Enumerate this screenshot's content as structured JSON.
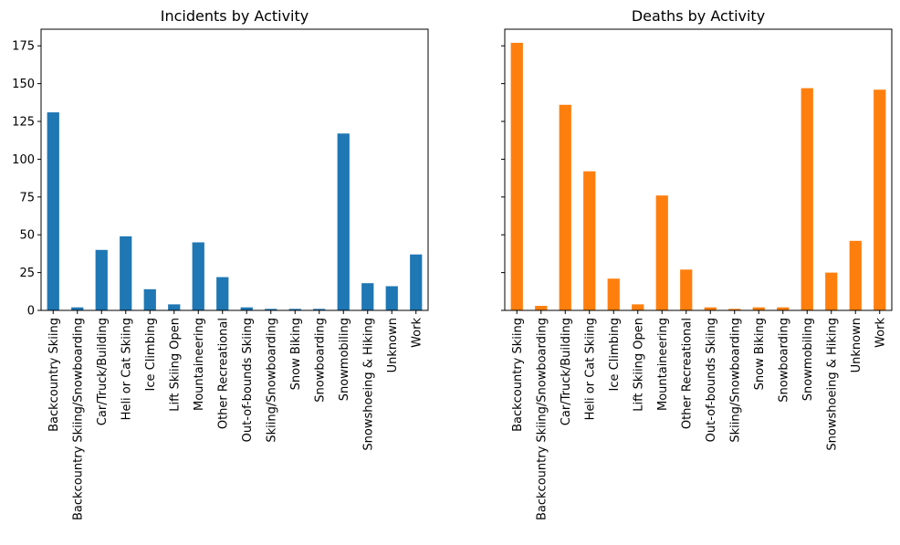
{
  "chart_data": [
    {
      "type": "bar",
      "title": "Incidents by Activity",
      "xlabel": "",
      "ylabel": "",
      "ylim": [
        0,
        186
      ],
      "yticks": [
        0,
        25,
        50,
        75,
        100,
        125,
        150,
        175
      ],
      "color": "#1f77b4",
      "categories": [
        "Backcountry Skiing",
        "Backcountry Skiing/Snowboarding",
        "Car/Truck/Building",
        "Heli or Cat Skiing",
        "Ice Climbing",
        "Lift Skiing Open",
        "Mountaineering",
        "Other Recreational",
        "Out-of-bounds Skiing",
        "Skiing/Snowboarding",
        "Snow Biking",
        "Snowboarding",
        "Snowmobiling",
        "Snowshoeing & Hiking",
        "Unknown",
        "Work"
      ],
      "values": [
        131,
        2,
        40,
        49,
        14,
        4,
        45,
        22,
        2,
        1,
        1,
        1,
        117,
        18,
        16,
        37
      ],
      "grid": false,
      "legend": "none"
    },
    {
      "type": "bar",
      "title": "Deaths by Activity",
      "xlabel": "",
      "ylabel": "",
      "ylim": [
        0,
        186
      ],
      "yticks": [
        0,
        25,
        50,
        75,
        100,
        125,
        150,
        175
      ],
      "color": "#ff7f0e",
      "categories": [
        "Backcountry Skiing",
        "Backcountry Skiing/Snowboarding",
        "Car/Truck/Building",
        "Heli or Cat Skiing",
        "Ice Climbing",
        "Lift Skiing Open",
        "Mountaineering",
        "Other Recreational",
        "Out-of-bounds Skiing",
        "Skiing/Snowboarding",
        "Snow Biking",
        "Snowboarding",
        "Snowmobiling",
        "Snowshoeing & Hiking",
        "Unknown",
        "Work"
      ],
      "values": [
        177,
        3,
        136,
        92,
        21,
        4,
        76,
        27,
        2,
        1,
        2,
        2,
        147,
        25,
        46,
        146
      ],
      "grid": false,
      "legend": "none"
    }
  ]
}
